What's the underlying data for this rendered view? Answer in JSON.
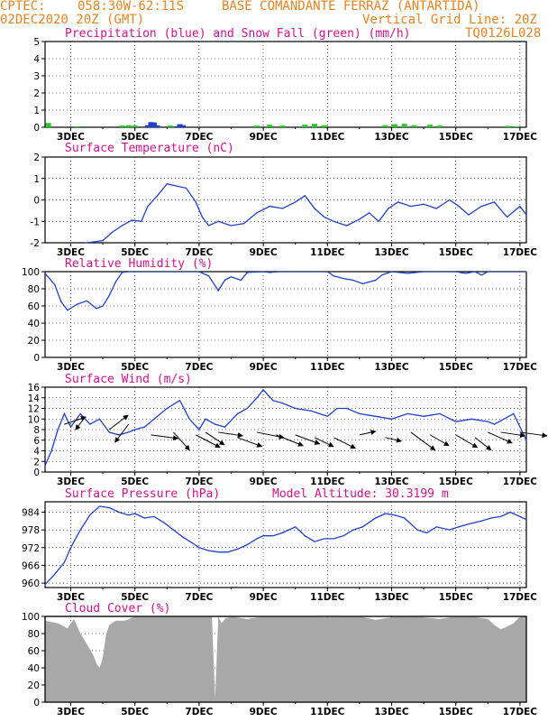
{
  "header": {
    "org": "CPTEC:",
    "coords": "058:30W-62:11S",
    "station": "BASE COMANDANTE FERRAZ (ANTARTIDA)",
    "init_time": "02DEC2020 20Z (GMT)",
    "grid_line": "Vertical Grid Line: 20Z",
    "model_code": "TQ0126L028"
  },
  "x_axis": {
    "tick_labels": [
      "3DEC",
      "5DEC",
      "7DEC",
      "9DEC",
      "11DEC",
      "13DEC",
      "15DEC",
      "17DEC"
    ],
    "tick_days": [
      3,
      5,
      7,
      9,
      11,
      13,
      15,
      17
    ],
    "range_days": [
      2.2,
      17.2
    ]
  },
  "colors": {
    "header": "#e8821e",
    "title": "#d6108c",
    "precip": "#1f3fd1",
    "snow": "#22cc22",
    "line": "#1f3fd1",
    "cloud": "#a8a8a8",
    "arrow": "#000000"
  },
  "chart_data": [
    {
      "type": "bar",
      "id": "precip",
      "title": "Precipitation (blue) and Snow Fall (green) (mm/h)",
      "ylim": [
        0,
        5
      ],
      "yticks": [
        0,
        1,
        2,
        3,
        4,
        5
      ],
      "grid": true,
      "series": [
        {
          "name": "Precipitation",
          "color": "#1f3fd1",
          "x": [
            5.4,
            5.5,
            5.6,
            5.7,
            6.3,
            6.4,
            6.5
          ],
          "values": [
            0.12,
            0.3,
            0.28,
            0.1,
            0.05,
            0.18,
            0.12
          ]
        },
        {
          "name": "Snow Fall",
          "color": "#22cc22",
          "x": [
            2.3,
            3.2,
            4.6,
            4.8,
            5.0,
            6.1,
            8.8,
            9.2,
            9.6,
            10.3,
            10.6,
            10.9,
            12.8,
            13.1,
            13.4,
            13.7,
            14.2,
            14.5,
            16.6,
            16.9
          ],
          "values": [
            0.25,
            0.05,
            0.1,
            0.12,
            0.1,
            0.1,
            0.1,
            0.15,
            0.1,
            0.15,
            0.2,
            0.12,
            0.12,
            0.18,
            0.2,
            0.12,
            0.15,
            0.1,
            0.08,
            0.06
          ]
        }
      ]
    },
    {
      "type": "line",
      "id": "temp",
      "title": "Surface Temperature (nC)",
      "ylim": [
        -2,
        2
      ],
      "yticks": [
        -2,
        -1,
        0,
        1,
        2
      ],
      "grid": true,
      "x": [
        3.0,
        3.5,
        4.0,
        4.3,
        4.6,
        4.9,
        5.2,
        5.4,
        5.7,
        6.0,
        6.3,
        6.6,
        6.9,
        7.1,
        7.3,
        7.6,
        8.0,
        8.4,
        8.8,
        9.2,
        9.6,
        10.0,
        10.3,
        10.6,
        10.9,
        11.2,
        11.6,
        12.0,
        12.3,
        12.6,
        12.9,
        13.2,
        13.6,
        14.0,
        14.4,
        14.8,
        15.1,
        15.4,
        15.8,
        16.2,
        16.6,
        17.0,
        17.2
      ],
      "values": [
        -2.2,
        -2.0,
        -1.9,
        -1.5,
        -1.2,
        -0.95,
        -1.0,
        -0.3,
        0.2,
        0.75,
        0.65,
        0.55,
        -0.1,
        -0.8,
        -1.2,
        -1.0,
        -1.2,
        -1.1,
        -0.6,
        -0.3,
        -0.4,
        -0.1,
        0.2,
        -0.4,
        -0.8,
        -1.0,
        -1.2,
        -0.9,
        -0.6,
        -1.0,
        -0.4,
        -0.1,
        -0.3,
        -0.2,
        -0.4,
        0.0,
        -0.3,
        -0.7,
        -0.3,
        -0.1,
        -0.8,
        -0.3,
        -0.7
      ]
    },
    {
      "type": "line",
      "id": "rh",
      "title": "Relative Humidity (%)",
      "ylim": [
        0,
        100
      ],
      "yticks": [
        0,
        20,
        40,
        60,
        80,
        100
      ],
      "grid": true,
      "x": [
        2.2,
        2.5,
        2.7,
        2.9,
        3.2,
        3.5,
        3.8,
        4.0,
        4.2,
        4.4,
        4.6,
        4.8,
        5.0,
        6.0,
        7.0,
        7.3,
        7.6,
        7.8,
        8.0,
        8.3,
        8.5,
        9.0,
        9.2,
        9.5,
        10.0,
        11.0,
        11.2,
        11.5,
        11.8,
        12.1,
        12.3,
        12.5,
        12.7,
        13.0,
        13.5,
        14.0,
        14.5,
        15.0,
        15.3,
        15.6,
        15.8,
        16.0,
        16.4,
        17.2
      ],
      "values": [
        98,
        85,
        65,
        55,
        62,
        66,
        57,
        60,
        72,
        88,
        99,
        100,
        100,
        100,
        100,
        95,
        78,
        90,
        94,
        90,
        99,
        100,
        99,
        100,
        100,
        100,
        95,
        92,
        90,
        86,
        88,
        90,
        96,
        100,
        98,
        100,
        100,
        100,
        98,
        100,
        96,
        100,
        100,
        100
      ]
    },
    {
      "type": "line",
      "id": "wind",
      "title": "Surface Wind (m/s)",
      "ylim": [
        0,
        16
      ],
      "yticks": [
        0,
        2,
        4,
        6,
        8,
        10,
        12,
        14,
        16
      ],
      "grid": true,
      "x": [
        2.2,
        2.4,
        2.6,
        2.8,
        3.0,
        3.3,
        3.6,
        3.9,
        4.2,
        4.5,
        4.8,
        5.0,
        5.3,
        5.6,
        6.0,
        6.4,
        6.7,
        7.0,
        7.2,
        7.5,
        7.8,
        8.2,
        8.5,
        8.8,
        9.0,
        9.3,
        9.6,
        10.0,
        10.5,
        11.0,
        11.3,
        11.6,
        12.0,
        12.5,
        13.0,
        13.5,
        14.0,
        14.5,
        15.0,
        15.5,
        16.0,
        16.2,
        16.5,
        16.8,
        17.2
      ],
      "values": [
        1.2,
        4,
        8,
        11,
        8.5,
        11,
        9,
        10,
        7.5,
        7,
        7.5,
        8,
        8.5,
        10,
        12,
        13.5,
        10,
        8,
        10,
        9,
        8.5,
        11,
        12,
        14,
        15.5,
        13.5,
        13,
        12,
        11.5,
        10.5,
        12,
        12,
        11,
        10.5,
        10,
        11,
        10.5,
        11,
        9.5,
        10,
        9.5,
        9,
        10,
        11,
        6
      ]
    },
    {
      "type": "line",
      "id": "press",
      "title": "Surface Pressure (hPa)",
      "annotation": "Model Altitude: 30.3199 m",
      "ylim": [
        958.5,
        987.5
      ],
      "yticks": [
        960,
        966,
        972,
        978,
        984
      ],
      "grid": true,
      "x": [
        2.2,
        2.5,
        2.8,
        3.0,
        3.3,
        3.6,
        3.9,
        4.2,
        4.5,
        4.8,
        5.0,
        5.3,
        5.6,
        5.9,
        6.2,
        6.5,
        6.8,
        7.0,
        7.3,
        7.6,
        7.9,
        8.2,
        8.5,
        8.8,
        9.0,
        9.3,
        9.6,
        10.0,
        10.3,
        10.6,
        10.9,
        11.2,
        11.5,
        11.8,
        12.1,
        12.5,
        12.8,
        13.1,
        13.4,
        13.8,
        14.1,
        14.4,
        14.8,
        15.1,
        15.4,
        15.8,
        16.1,
        16.4,
        16.7,
        17.0,
        17.2
      ],
      "values": [
        959.5,
        963,
        967,
        972,
        978,
        983,
        986,
        985.5,
        984,
        983,
        983.5,
        982,
        982.5,
        980.5,
        978,
        975.5,
        973.5,
        972,
        971,
        970.5,
        970.5,
        971.5,
        973,
        975,
        976,
        976,
        977,
        979,
        976,
        974,
        975,
        975,
        976,
        978,
        979,
        982,
        983.5,
        983,
        982,
        978,
        977,
        979,
        978,
        979,
        980,
        981,
        982,
        982.5,
        984,
        982.5,
        981.5
      ]
    },
    {
      "type": "area",
      "id": "cloud",
      "title": "Cloud Cover (%)",
      "ylim": [
        0,
        100
      ],
      "yticks": [
        0,
        20,
        40,
        60,
        80,
        100
      ],
      "grid": true,
      "x": [
        2.2,
        2.6,
        2.9,
        3.1,
        3.3,
        3.5,
        3.7,
        3.8,
        3.9,
        4.0,
        4.1,
        4.2,
        4.4,
        4.7,
        5.0,
        7.4,
        7.5,
        7.6,
        7.7,
        7.8,
        8.0,
        8.5,
        9.0,
        10.0,
        11.0,
        12.0,
        12.5,
        13.0,
        13.5,
        14.0,
        14.5,
        15.0,
        15.5,
        16.0,
        16.2,
        16.4,
        16.6,
        16.8,
        17.0,
        17.2
      ],
      "values": [
        95,
        92,
        86,
        97,
        80,
        68,
        55,
        45,
        40,
        52,
        78,
        90,
        95,
        95,
        100,
        100,
        5,
        100,
        92,
        97,
        100,
        97,
        100,
        100,
        99,
        100,
        96,
        99,
        100,
        99,
        97,
        100,
        100,
        97,
        90,
        85,
        88,
        92,
        100,
        100
      ]
    }
  ],
  "wind_vectors": {
    "x": [
      2.8,
      3.4,
      4.2,
      4.8,
      5.5,
      6.2,
      6.9,
      7.2,
      7.6,
      8.2,
      8.8,
      9.4,
      10.0,
      10.6,
      11.2,
      12.0,
      12.8,
      13.6,
      14.2,
      15.0,
      15.6,
      16.0,
      16.4,
      17.0
    ],
    "y": [
      9,
      10,
      8,
      9,
      7,
      7.5,
      7,
      7.5,
      7.5,
      6.5,
      7.5,
      7,
      7,
      6.5,
      6.5,
      7,
      6.5,
      7.5,
      7,
      7,
      6.5,
      7.5,
      7.5,
      7.5
    ],
    "u": [
      8,
      -3,
      7,
      -5,
      10,
      6,
      9,
      7,
      9,
      9,
      10,
      10,
      9,
      7,
      8,
      6,
      6,
      9,
      7,
      8,
      6,
      9,
      9,
      10
    ],
    "v": [
      4,
      -6,
      8,
      -10,
      -2,
      -10,
      -7,
      -7,
      -2,
      -5,
      -3,
      -6,
      -5,
      -5,
      -6,
      2,
      -2,
      -10,
      -6,
      -7,
      -7,
      -6,
      -2,
      -2
    ]
  }
}
